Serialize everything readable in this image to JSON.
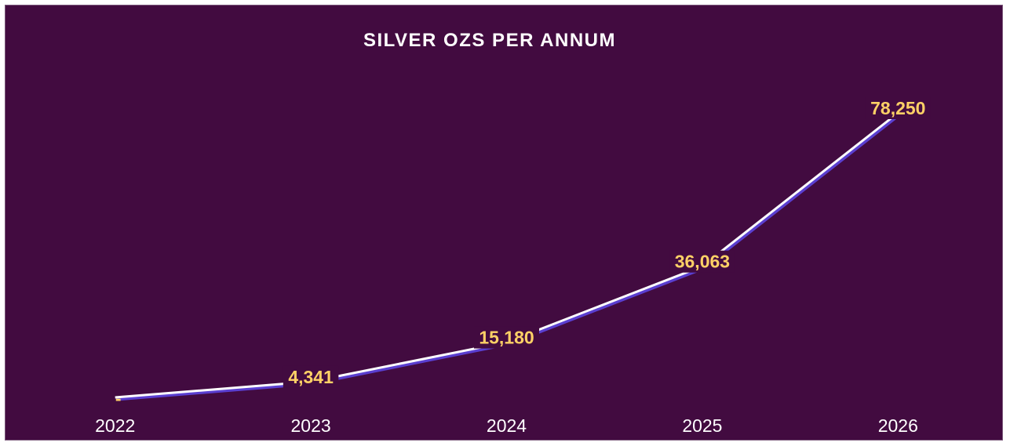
{
  "colors": {
    "background": "#420b40",
    "line": "#ffffff",
    "line_shadow": "#5a3fd0",
    "data_label": "#ffd166",
    "drop_line": "#c8a9c6",
    "text": "#ffffff"
  },
  "chart_data": {
    "type": "line",
    "title": "SILVER OZS PER ANNUM",
    "xlabel": "",
    "ylabel": "",
    "categories": [
      "2022",
      "2023",
      "2024",
      "2025",
      "2026"
    ],
    "values": [
      0,
      4341,
      15180,
      36063,
      78250
    ],
    "data_labels": [
      "-",
      "4,341",
      "15,180",
      "36,063",
      "78,250"
    ],
    "ylim": [
      0,
      80000
    ],
    "grid": false,
    "legend": "none",
    "drop_lines": true
  }
}
